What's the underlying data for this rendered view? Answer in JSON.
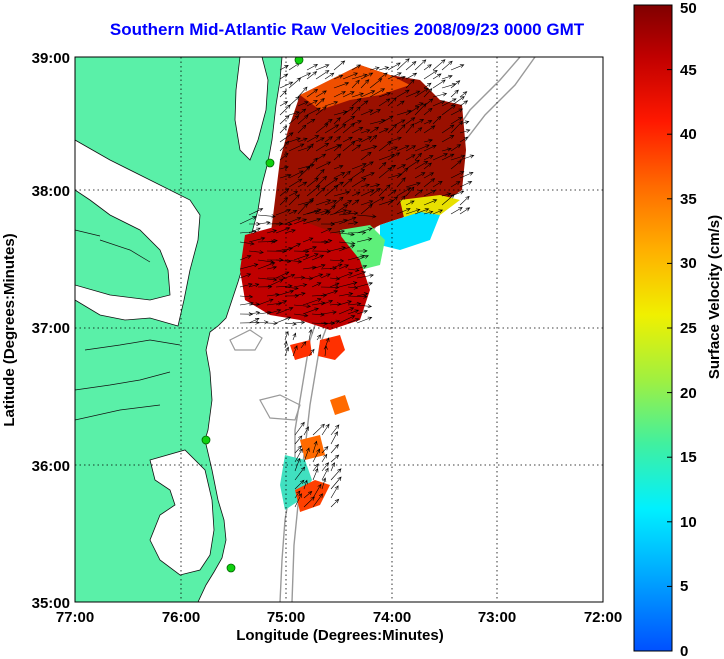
{
  "title": "Southern Mid-Atlantic Raw Velocities 2008/09/23 0000 GMT",
  "xaxis": {
    "label": "Longitude (Degrees:Minutes)",
    "ticks": [
      "77:00",
      "76:00",
      "75:00",
      "74:00",
      "73:00",
      "72:00"
    ],
    "range": [
      -77,
      -72
    ]
  },
  "yaxis": {
    "label": "Latitude (Degrees:Minutes)",
    "ticks": [
      "35:00",
      "36:00",
      "37:00",
      "38:00",
      "39:00"
    ],
    "range": [
      35,
      39
    ]
  },
  "colorbar": {
    "label": "Surface Velocity (cm/s)",
    "ticks": [
      "0",
      "5",
      "10",
      "15",
      "20",
      "25",
      "30",
      "35",
      "40",
      "45",
      "50"
    ],
    "range": [
      0,
      50
    ]
  },
  "grid": "dotted",
  "colors": {
    "land": "#5af0a8",
    "title": "#0000ff",
    "isobath": "#9a9a9a"
  }
}
